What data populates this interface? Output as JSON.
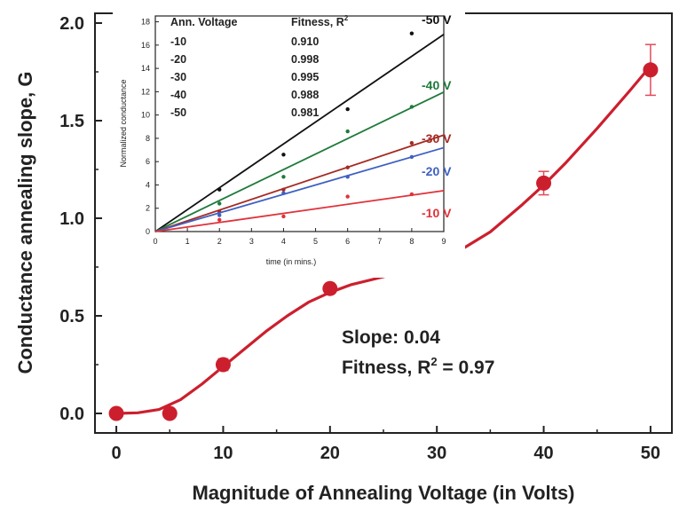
{
  "chart_data": [
    {
      "type": "scatter",
      "xlabel": "Magnitude of Annealing Voltage (in Volts)",
      "ylabel": "Conductance annealing slope, G",
      "xlim": [
        -2,
        52
      ],
      "ylim": [
        -0.1,
        2.05
      ],
      "x_ticks": [
        "0",
        "10",
        "20",
        "30",
        "40",
        "50"
      ],
      "y_ticks": [
        "0.0",
        "0.5",
        "1.0",
        "1.5",
        "2.0"
      ],
      "grid": false,
      "colors": {
        "marker": "#cc1f2e",
        "fit": "#cc1f2e",
        "error": "#e24b5a"
      },
      "series": [
        {
          "x": [
            0,
            5,
            10,
            20,
            30,
            40,
            50
          ],
          "y": [
            0.0,
            0.0,
            0.25,
            0.64,
            0.77,
            1.18,
            1.76
          ],
          "yerr": [
            0.0,
            0.0,
            0.03,
            0.0,
            0.0,
            0.06,
            0.13
          ]
        }
      ],
      "fit_curve": {
        "x": [
          0,
          2,
          4,
          6,
          8,
          10,
          12,
          14,
          16,
          18,
          20,
          22,
          25,
          28,
          30,
          32,
          35,
          38,
          40,
          42,
          45,
          48,
          50
        ],
        "y": [
          0.0,
          0.003,
          0.02,
          0.07,
          0.15,
          0.24,
          0.33,
          0.42,
          0.5,
          0.57,
          0.62,
          0.66,
          0.7,
          0.75,
          0.78,
          0.83,
          0.93,
          1.07,
          1.17,
          1.28,
          1.46,
          1.65,
          1.78
        ]
      },
      "annotation_slope": "Slope: 0.04",
      "annotation_fitness_prefix": "Fitness, R",
      "annotation_fitness_sup": "2",
      "annotation_fitness_suffix": " = 0.97"
    },
    {
      "type": "scatter",
      "xlabel": "time (in mins.)",
      "ylabel": "Normalized conductance",
      "xlim": [
        0,
        9
      ],
      "ylim": [
        0,
        18.5
      ],
      "x_ticks": [
        "0",
        "1",
        "2",
        "3",
        "4",
        "5",
        "6",
        "7",
        "8",
        "9"
      ],
      "y_ticks": [
        "0",
        "2",
        "4",
        "6",
        "8",
        "10",
        "12",
        "14",
        "16",
        "18"
      ],
      "table_header_voltage": "Ann. Voltage",
      "table_header_fitness": "Fitness, R",
      "table_header_fitness_sup": "2",
      "table_rows": [
        {
          "voltage": "-10",
          "fitness": "0.910"
        },
        {
          "voltage": "-20",
          "fitness": "0.998"
        },
        {
          "voltage": "-30",
          "fitness": "0.995"
        },
        {
          "voltage": "-40",
          "fitness": "0.988"
        },
        {
          "voltage": "-50",
          "fitness": "0.981"
        }
      ],
      "series": [
        {
          "name": "-50 V",
          "color": "#111111",
          "slope": 1.88,
          "x": [
            2,
            4,
            6,
            8
          ],
          "y": [
            3.6,
            6.6,
            10.5,
            17.0
          ]
        },
        {
          "name": "-40 V",
          "color": "#1f7a3a",
          "slope": 1.33,
          "x": [
            2,
            4,
            6,
            8
          ],
          "y": [
            2.4,
            4.7,
            8.6,
            10.7
          ]
        },
        {
          "name": "-30 V",
          "color": "#a52a22",
          "slope": 0.92,
          "x": [
            2,
            4,
            6,
            8
          ],
          "y": [
            1.7,
            3.6,
            5.5,
            7.6
          ]
        },
        {
          "name": "-20 V",
          "color": "#3f60c2",
          "slope": 0.8,
          "x": [
            2,
            4,
            6,
            8
          ],
          "y": [
            1.4,
            3.3,
            4.7,
            6.4
          ]
        },
        {
          "name": "-10 V",
          "color": "#e0323a",
          "slope": 0.39,
          "x": [
            2,
            4,
            6,
            8
          ],
          "y": [
            1.0,
            1.3,
            3.0,
            3.2
          ]
        }
      ]
    }
  ]
}
